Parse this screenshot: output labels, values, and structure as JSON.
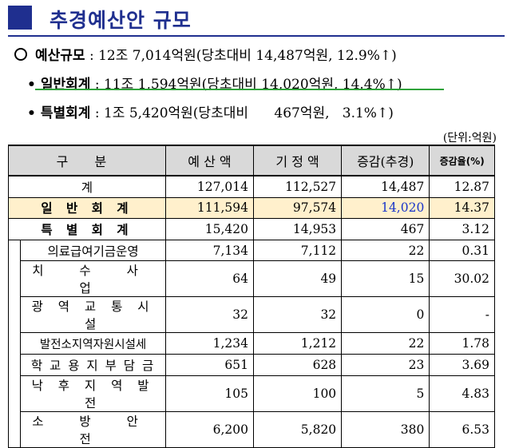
{
  "title": "추경예산안 규모",
  "summary": {
    "budget": {
      "label": "예산규모",
      "amount": "12조 7,014억원",
      "detail": "(당초대비  14,487억원,  12.9%↑)"
    },
    "general": {
      "label": "일반회계",
      "amount": "11조 1,594억원",
      "detail": "(당초대비  14,020억원,  14.4%↑)"
    },
    "special": {
      "label": "특별회계",
      "amount": "1조 5,420억원",
      "detail": "(당초대비      467억원,   3.1%↑)"
    }
  },
  "unit": "(단위:억원)",
  "table": {
    "headers": [
      "구  분",
      "예 산 액",
      "기 정 액",
      "증감(추경)",
      "증감율(%)"
    ],
    "total": {
      "label": "계",
      "budget": "127,014",
      "base": "112,527",
      "diff": "14,487",
      "rate": "12.87"
    },
    "general": {
      "label": "일 반 회 계",
      "budget": "111,594",
      "base": "97,574",
      "diff": "14,020",
      "rate": "14.37"
    },
    "special": {
      "label": "특 별 회 계",
      "budget": "15,420",
      "base": "14,953",
      "diff": "467",
      "rate": "3.12"
    },
    "rows": [
      {
        "label": "의료급여기금운영",
        "budget": "7,134",
        "base": "7,112",
        "diff": "22",
        "rate": "0.31"
      },
      {
        "label": "치 수 사 업",
        "budget": "64",
        "base": "49",
        "diff": "15",
        "rate": "30.02"
      },
      {
        "label": "광 역 교 통 시 설",
        "budget": "32",
        "base": "32",
        "diff": "0",
        "rate": "-"
      },
      {
        "label": "발전소지역자원시설세",
        "budget": "1,234",
        "base": "1,212",
        "diff": "22",
        "rate": "1.78"
      },
      {
        "label": "학 교 용 지 부 담 금",
        "budget": "651",
        "base": "628",
        "diff": "23",
        "rate": "3.69"
      },
      {
        "label": "낙 후 지 역 발 전",
        "budget": "105",
        "base": "100",
        "diff": "5",
        "rate": "4.83"
      },
      {
        "label": "소 방 안 전",
        "budget": "6,200",
        "base": "5,820",
        "diff": "380",
        "rate": "6.53"
      }
    ]
  },
  "colors": {
    "title": "#1f2f8f",
    "highlight_row": "#fff0cc",
    "header_bg": "#d9d9d9",
    "blue_value": "#1a35c9",
    "underline": "#2fa23a"
  }
}
